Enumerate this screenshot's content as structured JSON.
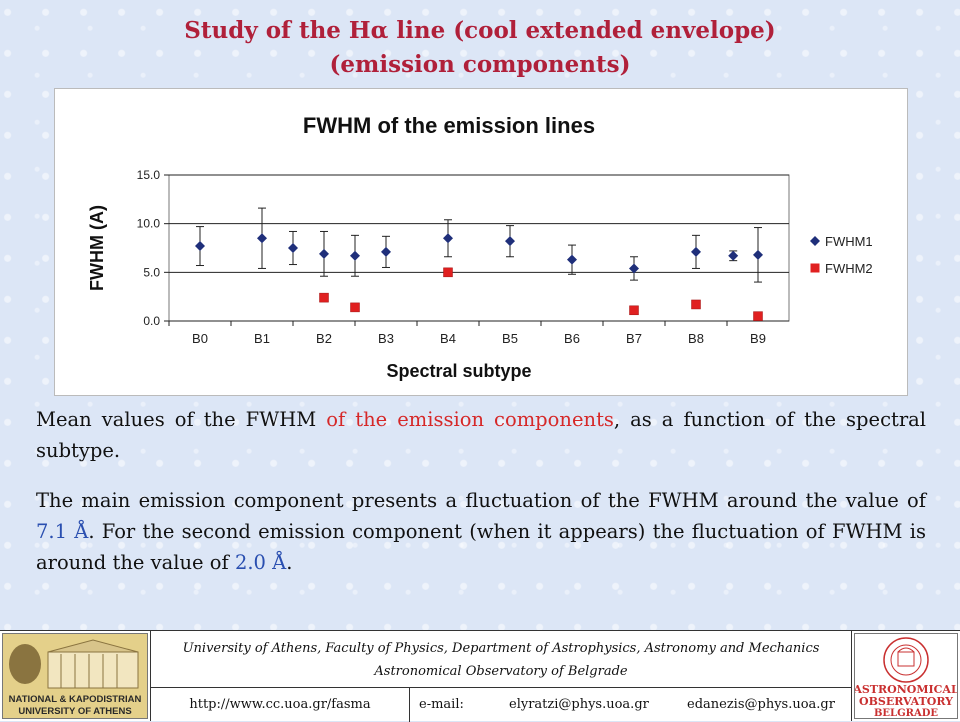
{
  "slide": {
    "title_line1": "Study of the Hα line (cool extended envelope)",
    "title_line2": "(emission components)"
  },
  "chart_data": {
    "type": "scatter",
    "title": "FWHM of the emission lines",
    "xlabel": "Spectral subtype",
    "ylabel": "FWHM (A)",
    "categories": [
      "B0",
      "B1",
      "B2",
      "B3",
      "B4",
      "B5",
      "B6",
      "B7",
      "B8",
      "B9"
    ],
    "ylim": [
      0,
      15
    ],
    "yticks": [
      "0.0",
      "5.0",
      "10.0",
      "15.0"
    ],
    "grid": true,
    "legend_position": "right",
    "series": [
      {
        "name": "FWHM1",
        "marker": "diamond",
        "color": "#1f2f7a",
        "points": [
          {
            "x": 0.0,
            "y": 7.7,
            "err": 2.0
          },
          {
            "x": 1.0,
            "y": 8.5,
            "err": 3.1
          },
          {
            "x": 1.5,
            "y": 7.5,
            "err": 1.7
          },
          {
            "x": 2.0,
            "y": 6.9,
            "err": 2.3
          },
          {
            "x": 2.5,
            "y": 6.7,
            "err": 2.1
          },
          {
            "x": 3.0,
            "y": 7.1,
            "err": 1.6
          },
          {
            "x": 4.0,
            "y": 8.5,
            "err": 1.9
          },
          {
            "x": 5.0,
            "y": 8.2,
            "err": 1.6
          },
          {
            "x": 6.0,
            "y": 6.3,
            "err": 1.5
          },
          {
            "x": 7.0,
            "y": 5.4,
            "err": 1.2
          },
          {
            "x": 8.0,
            "y": 7.1,
            "err": 1.7
          },
          {
            "x": 8.6,
            "y": 6.7,
            "err": 0.5
          },
          {
            "x": 9.0,
            "y": 6.8,
            "err": 2.8
          }
        ]
      },
      {
        "name": "FWHM2",
        "marker": "square",
        "color": "#e02020",
        "points": [
          {
            "x": 2.0,
            "y": 2.4
          },
          {
            "x": 2.5,
            "y": 1.4
          },
          {
            "x": 4.0,
            "y": 5.0
          },
          {
            "x": 7.0,
            "y": 1.1
          },
          {
            "x": 8.0,
            "y": 1.7
          },
          {
            "x": 9.0,
            "y": 0.5
          }
        ]
      }
    ]
  },
  "text": {
    "p1_a": "Mean values of the FWHM ",
    "p1_b": "of the emission components",
    "p1_c": ", as a function of the spectral subtype.",
    "p2_a": "The main emission component presents a fluctuation of the FWHM around the value of ",
    "p2_b": "7.1 Å",
    "p2_c": ". For the second emission component (when it appears) the fluctuation of FWHM is around the value of ",
    "p2_d": "2.0 Å",
    "p2_e": "."
  },
  "footer": {
    "line1": "University of Athens, Faculty of Physics, Department of Astrophysics, Astronomy and Mechanics",
    "line2": "Astronomical Observatory of Belgrade",
    "url": "http://www.cc.uoa.gr/fasma",
    "email_label": "e-mail:",
    "email1": "elyratzi@phys.uoa.gr",
    "email2": "edanezis@phys.uoa.gr",
    "logo_left_text1": "NATIONAL & KAPODISTRIAN",
    "logo_left_text2": "UNIVERSITY OF ATHENS",
    "logo_right_text1": "ASTRONOMICAL",
    "logo_right_text2": "OBSERVATORY",
    "logo_right_text3": "BELGRADE"
  }
}
